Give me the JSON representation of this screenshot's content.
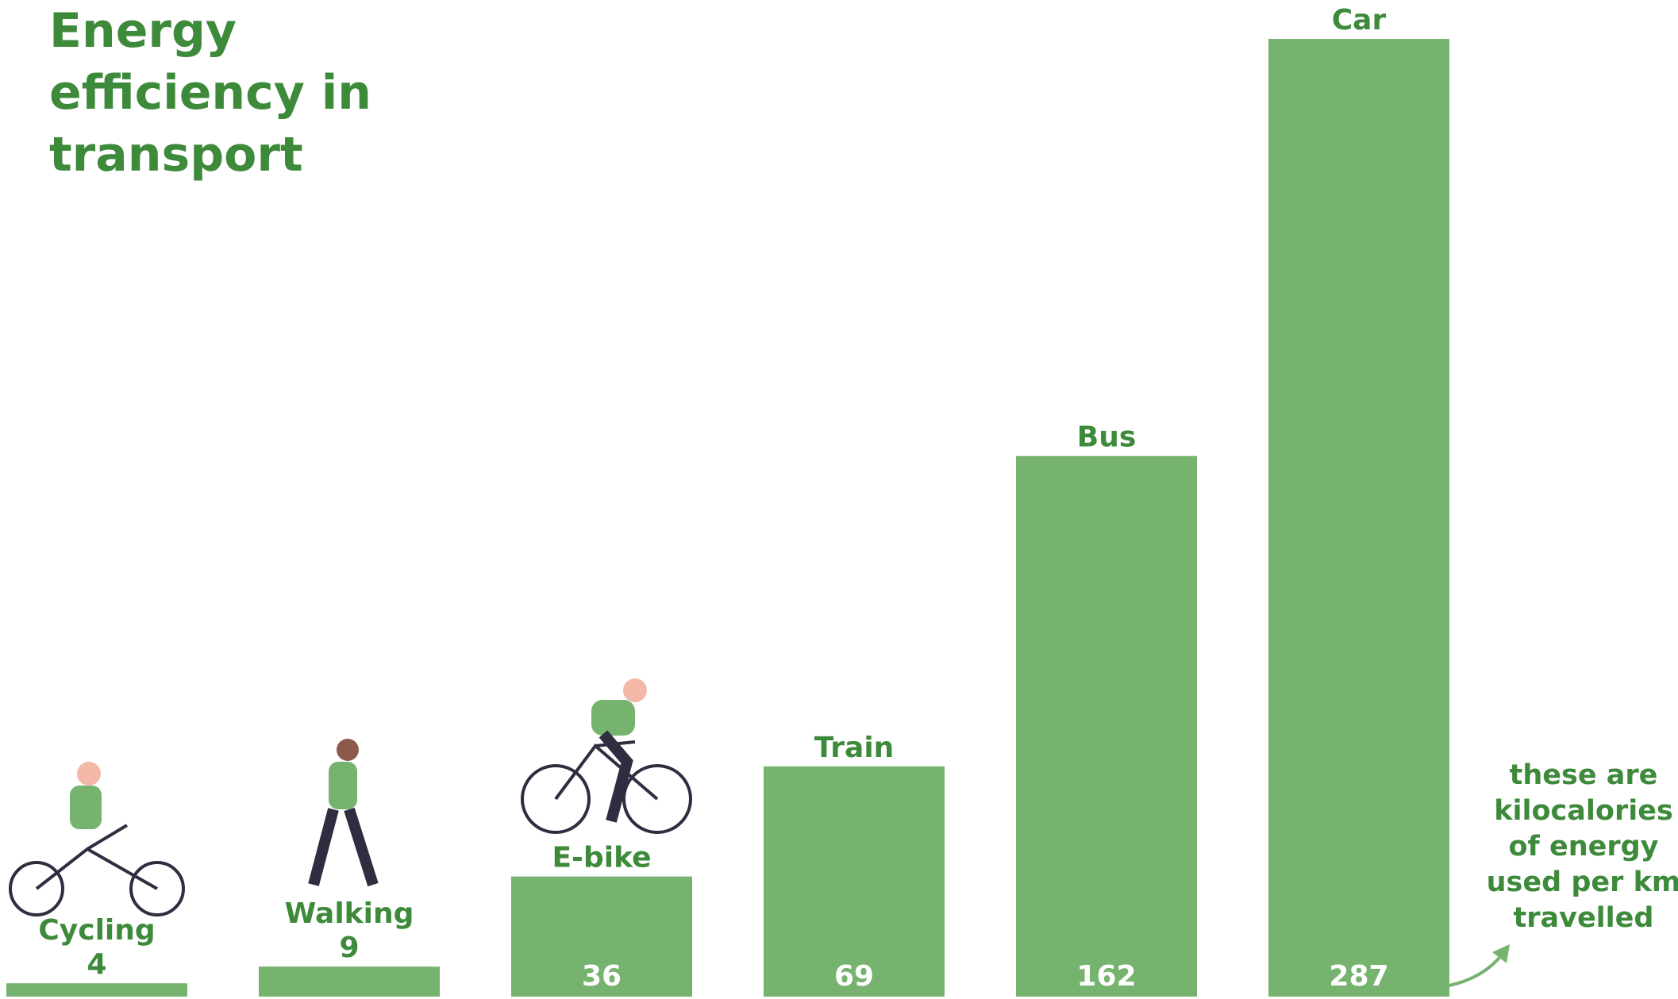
{
  "chart_data": {
    "type": "bar",
    "title": "Energy efficiency in transport",
    "categories": [
      "Cycling",
      "Walking",
      "E-bike",
      "Train",
      "Bus",
      "Car"
    ],
    "values": [
      4,
      9,
      36,
      69,
      162,
      287
    ],
    "color": "#76b36e",
    "annotation": "these are kilocalories of energy used per km travelled"
  }
}
